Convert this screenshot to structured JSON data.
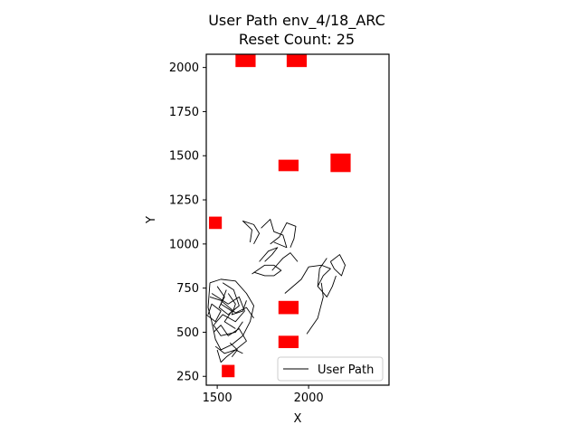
{
  "chart_data": {
    "type": "line",
    "title": "User Path env_4/18_ARC",
    "subtitle": "Reset Count: 25",
    "xlabel": "X",
    "ylabel": "Y",
    "xlim": [
      1440,
      2440
    ],
    "ylim": [
      200,
      2075
    ],
    "xticks": [
      1500,
      2000
    ],
    "yticks": [
      250,
      500,
      750,
      1000,
      1250,
      1500,
      1750,
      2000
    ],
    "grid": false,
    "legend": {
      "location": "lower-right",
      "entries": [
        "User Path"
      ]
    },
    "colors": {
      "path": "#000000",
      "obstacle": "#ff0000",
      "frame": "#000000"
    },
    "obstacles": [
      {
        "x": 1655,
        "y": 2040,
        "w": 110,
        "h": 75
      },
      {
        "x": 1935,
        "y": 2040,
        "w": 110,
        "h": 75
      },
      {
        "x": 1890,
        "y": 1445,
        "w": 110,
        "h": 65
      },
      {
        "x": 2175,
        "y": 1460,
        "w": 110,
        "h": 105
      },
      {
        "x": 1490,
        "y": 1120,
        "w": 70,
        "h": 70
      },
      {
        "x": 1890,
        "y": 640,
        "w": 110,
        "h": 75
      },
      {
        "x": 1890,
        "y": 445,
        "w": 110,
        "h": 70
      },
      {
        "x": 1560,
        "y": 280,
        "w": 70,
        "h": 70
      }
    ],
    "series": [
      {
        "name": "User Path",
        "segments": [
          [
            [
              1460,
              780
            ],
            [
              1520,
              800
            ],
            [
              1600,
              790
            ],
            [
              1660,
              720
            ],
            [
              1700,
              650
            ],
            [
              1680,
              560
            ],
            [
              1640,
              480
            ],
            [
              1580,
              430
            ],
            [
              1520,
              400
            ],
            [
              1490,
              460
            ],
            [
              1470,
              560
            ],
            [
              1450,
              640
            ],
            [
              1460,
              780
            ]
          ],
          [
            [
              1470,
              720
            ],
            [
              1560,
              660
            ],
            [
              1620,
              700
            ],
            [
              1650,
              620
            ],
            [
              1600,
              560
            ],
            [
              1530,
              600
            ],
            [
              1480,
              540
            ],
            [
              1520,
              480
            ],
            [
              1600,
              500
            ],
            [
              1640,
              560
            ]
          ],
          [
            [
              1500,
              760
            ],
            [
              1540,
              700
            ],
            [
              1510,
              640
            ],
            [
              1560,
              600
            ],
            [
              1620,
              650
            ],
            [
              1590,
              740
            ],
            [
              1530,
              780
            ]
          ],
          [
            [
              1440,
              600
            ],
            [
              1490,
              560
            ],
            [
              1520,
              620
            ],
            [
              1470,
              660
            ],
            [
              1450,
              600
            ]
          ],
          [
            [
              1560,
              720
            ],
            [
              1600,
              660
            ],
            [
              1580,
              600
            ],
            [
              1640,
              620
            ],
            [
              1660,
              680
            ]
          ],
          [
            [
              1490,
              420
            ],
            [
              1540,
              380
            ],
            [
              1600,
              400
            ],
            [
              1660,
              450
            ],
            [
              1620,
              520
            ],
            [
              1560,
              480
            ],
            [
              1520,
              540
            ],
            [
              1480,
              500
            ]
          ],
          [
            [
              1500,
              400
            ],
            [
              1520,
              330
            ],
            [
              1550,
              360
            ],
            [
              1600,
              400
            ],
            [
              1640,
              380
            ]
          ],
          [
            [
              1580,
              360
            ],
            [
              1610,
              400
            ],
            [
              1570,
              440
            ]
          ],
          [
            [
              1460,
              700
            ],
            [
              1520,
              680
            ],
            [
              1600,
              610
            ],
            [
              1660,
              640
            ],
            [
              1700,
              580
            ]
          ],
          [
            [
              1550,
              740
            ],
            [
              1520,
              660
            ],
            [
              1580,
              620
            ],
            [
              1540,
              560
            ],
            [
              1600,
              520
            ]
          ],
          [
            [
              1680,
              1010
            ],
            [
              1690,
              1080
            ],
            [
              1640,
              1130
            ],
            [
              1700,
              1110
            ],
            [
              1730,
              1060
            ],
            [
              1700,
              1000
            ]
          ],
          [
            [
              1740,
              1090
            ],
            [
              1790,
              1140
            ],
            [
              1810,
              1070
            ],
            [
              1860,
              1050
            ],
            [
              1880,
              980
            ],
            [
              1810,
              1010
            ]
          ],
          [
            [
              1790,
              1000
            ],
            [
              1840,
              1040
            ],
            [
              1880,
              1120
            ],
            [
              1930,
              1100
            ],
            [
              1920,
              1030
            ],
            [
              1900,
              980
            ]
          ],
          [
            [
              1690,
              830
            ],
            [
              1760,
              880
            ],
            [
              1810,
              880
            ],
            [
              1850,
              850
            ],
            [
              1810,
              820
            ],
            [
              1760,
              820
            ],
            [
              1700,
              840
            ]
          ],
          [
            [
              1730,
              900
            ],
            [
              1780,
              960
            ],
            [
              1830,
              980
            ],
            [
              1800,
              940
            ],
            [
              1760,
              900
            ]
          ],
          [
            [
              1800,
              850
            ],
            [
              1860,
              920
            ],
            [
              1900,
              950
            ],
            [
              1940,
              900
            ]
          ],
          [
            [
              1870,
              720
            ],
            [
              1960,
              800
            ],
            [
              2000,
              870
            ],
            [
              2070,
              880
            ],
            [
              2120,
              860
            ],
            [
              2080,
              820
            ],
            [
              2050,
              760
            ]
          ],
          [
            [
              2120,
              900
            ],
            [
              2170,
              940
            ],
            [
              2200,
              880
            ],
            [
              2180,
              820
            ],
            [
              2140,
              860
            ],
            [
              2120,
              900
            ]
          ],
          [
            [
              2100,
              920
            ],
            [
              2060,
              860
            ],
            [
              2050,
              760
            ],
            [
              2100,
              700
            ],
            [
              2130,
              760
            ],
            [
              2150,
              820
            ]
          ],
          [
            [
              1990,
              490
            ],
            [
              2050,
              580
            ],
            [
              2080,
              700
            ],
            [
              2070,
              780
            ]
          ]
        ]
      }
    ]
  }
}
